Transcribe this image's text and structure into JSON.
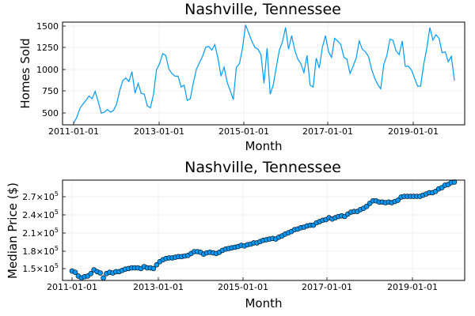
{
  "colors": {
    "series": "#009AFA",
    "marker_edge": "#000000",
    "grid": "#E6E6E6",
    "axes": "#000000"
  },
  "chart_data": [
    {
      "type": "line",
      "title": "Nashville, Tennessee",
      "xlabel": "Month",
      "ylabel": "Homes Sold",
      "x_start": "2011-01-01",
      "x_step": "1 month",
      "x_tick_labels": [
        "2011-01-01",
        "2013-01-01",
        "2015-01-01",
        "2017-01-01",
        "2019-01-01"
      ],
      "y_tick_labels": [
        "500",
        "750",
        "1000",
        "1250",
        "1500"
      ],
      "ylim": [
        380,
        1520
      ],
      "grid": true,
      "legend": "none",
      "series": [
        {
          "values": [
            400,
            460,
            560,
            610,
            650,
            700,
            670,
            750,
            640,
            510,
            520,
            550,
            520,
            540,
            610,
            760,
            870,
            900,
            860,
            970,
            730,
            840,
            730,
            720,
            590,
            570,
            720,
            990,
            1060,
            1170,
            1150,
            1000,
            950,
            920,
            920,
            800,
            820,
            650,
            670,
            850,
            1000,
            1070,
            1140,
            1240,
            1250,
            1210,
            1270,
            1120,
            920,
            1020,
            850,
            760,
            660,
            1020,
            1060,
            1230,
            1490,
            1400,
            1310,
            1240,
            1220,
            1160,
            840,
            1230,
            720,
            820,
            1020,
            1210,
            1300,
            1460,
            1220,
            1370,
            1210,
            1110,
            1060,
            960,
            1150,
            820,
            800,
            1120,
            1010,
            1240,
            1370,
            1190,
            1130,
            1340,
            1310,
            1270,
            1130,
            1110,
            950,
            1030,
            1120,
            1310,
            1220,
            1190,
            1140,
            1000,
            900,
            830,
            780,
            1050,
            1150,
            1330,
            1320,
            1200,
            1160,
            1310,
            1030,
            1030,
            990,
            900,
            810,
            810,
            1050,
            1230,
            1460,
            1320,
            1380,
            1340,
            1180,
            1190,
            1080,
            1140,
            870
          ]
        }
      ]
    },
    {
      "type": "scatter",
      "title": "Nashville, Tennessee",
      "xlabel": "Month",
      "ylabel": "Median Price ($)",
      "x_start": "2011-01-01",
      "x_step": "1 month",
      "x_tick_labels": [
        "2011-01-01",
        "2013-01-01",
        "2015-01-01",
        "2017-01-01",
        "2019-01-01"
      ],
      "y_tick_labels": [
        {
          "mantissa": "1.5×10",
          "exponent": "5"
        },
        {
          "mantissa": "1.8×10",
          "exponent": "5"
        },
        {
          "mantissa": "2.1×10",
          "exponent": "5"
        },
        {
          "mantissa": "2.4×10",
          "exponent": "5"
        },
        {
          "mantissa": "2.7×10",
          "exponent": "5"
        }
      ],
      "ylim": [
        130000,
        290000
      ],
      "grid": true,
      "legend": "none",
      "series": [
        {
          "values": [
            145000,
            143000,
            137000,
            134000,
            136000,
            137000,
            141000,
            147000,
            144000,
            142000,
            134000,
            141000,
            143000,
            142000,
            144000,
            144000,
            146000,
            148000,
            149000,
            150000,
            150000,
            150000,
            149000,
            152000,
            150000,
            150000,
            149000,
            155000,
            160000,
            163000,
            165000,
            166000,
            166000,
            167000,
            168000,
            168000,
            169000,
            170000,
            173000,
            176000,
            176000,
            175000,
            172000,
            174000,
            175000,
            174000,
            173000,
            175000,
            178000,
            180000,
            181000,
            182000,
            183000,
            184000,
            186000,
            185000,
            187000,
            188000,
            190000,
            190000,
            192000,
            194000,
            195000,
            196000,
            197000,
            196000,
            199000,
            201000,
            204000,
            206000,
            208000,
            211000,
            212000,
            214000,
            215000,
            217000,
            218000,
            218000,
            222000,
            224000,
            226000,
            227000,
            230000,
            228000,
            230000,
            232000,
            233000,
            232000,
            236000,
            239000,
            240000,
            240000,
            243000,
            245000,
            248000,
            253000,
            257000,
            257000,
            255000,
            255000,
            254000,
            255000,
            254000,
            256000,
            258000,
            263000,
            264000,
            264000,
            264000,
            264000,
            264000,
            264000,
            266000,
            268000,
            270000,
            270000,
            272000,
            276000,
            278000,
            282000,
            283000,
            286000,
            287000
          ]
        }
      ]
    }
  ]
}
